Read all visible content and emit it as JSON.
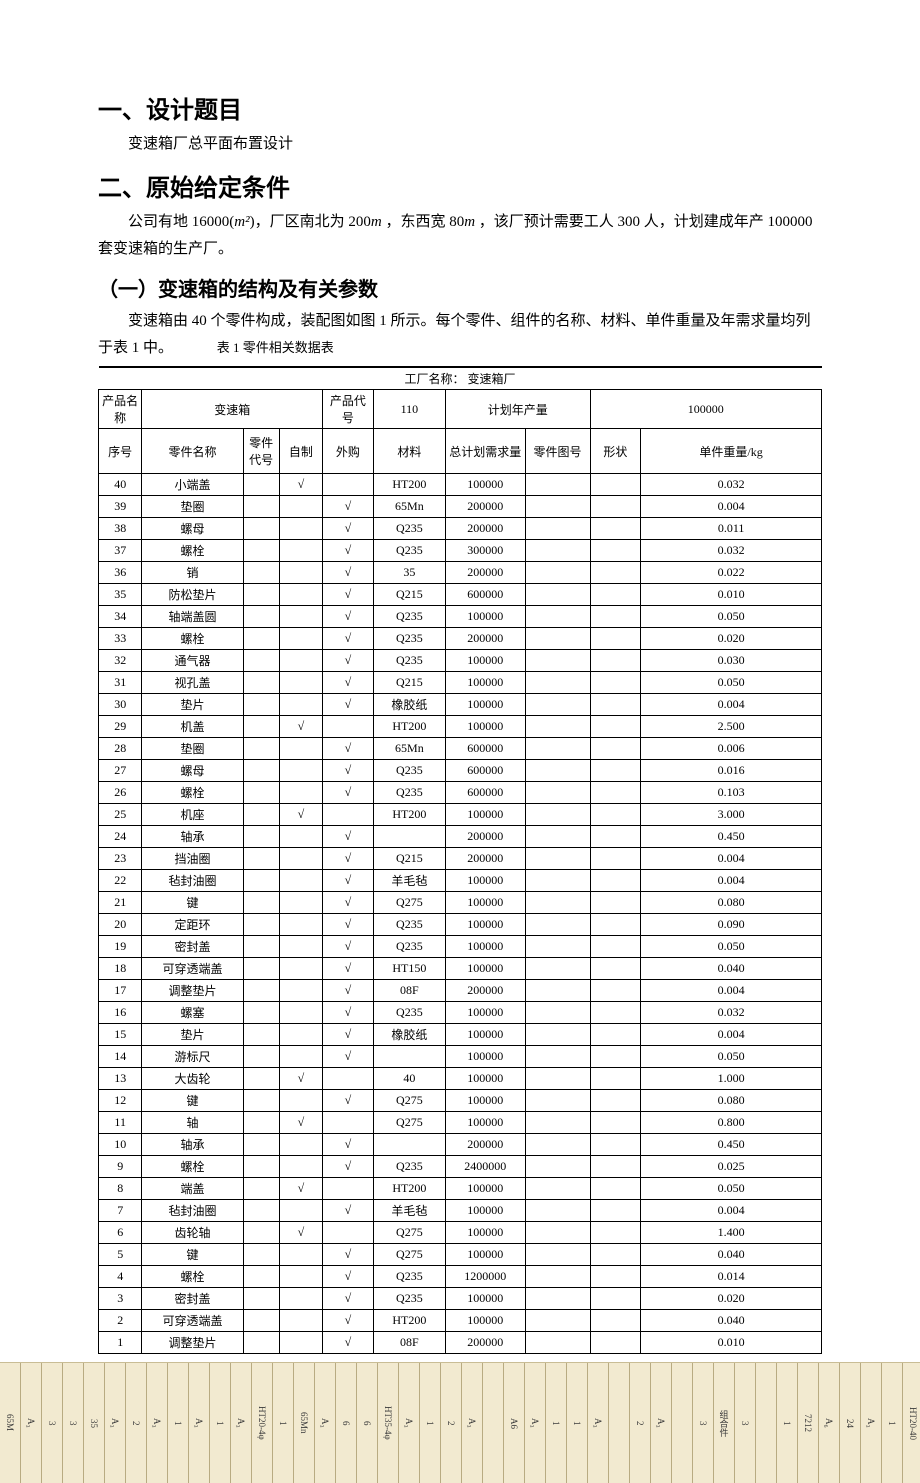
{
  "headings": {
    "h1": "一、设计题目",
    "h1_sub": "变速箱厂总平面布置设计",
    "h2": "二、原始给定条件",
    "h2_para_a": "公司有地 16000(",
    "h2_para_unit": "m²",
    "h2_para_b": ")，厂区南北为 200",
    "h2_para_m1": "m",
    "h2_para_c": " ，东西宽 80",
    "h2_para_m2": "m",
    "h2_para_d": " ，该厂预计需要工人 300 人，计划建成年产 100000 套变速箱的生产厂。",
    "h3": "（一）变速箱的结构及有关参数",
    "h3_para": "变速箱由 40 个零件构成，装配图如图 1 所示。每个零件、组件的名称、材料、单件重量及年需求量均列于表 1 中。",
    "caption": "表 1 零件相关数据表"
  },
  "table": {
    "factory_label": "工厂名称：",
    "factory_name": "变速箱厂",
    "product_row": {
      "product_name_label": "产品名称",
      "product_name": "变速箱",
      "product_code_label": "产品代号",
      "product_code": "110",
      "plan_output_label": "计划年产量",
      "plan_output": "100000"
    },
    "columns": [
      "序号",
      "零件名称",
      "零件代号",
      "自制",
      "外购",
      "材料",
      "总计划需求量",
      "零件图号",
      "形状",
      "单件重量/kg"
    ],
    "rows": [
      {
        "no": "40",
        "name": "小端盖",
        "code": "",
        "make": "√",
        "buy": "",
        "mat": "HT200",
        "demand": "100000",
        "draw": "",
        "shape": "",
        "wt": "0.032"
      },
      {
        "no": "39",
        "name": "垫圈",
        "code": "",
        "make": "",
        "buy": "√",
        "mat": "65Mn",
        "demand": "200000",
        "draw": "",
        "shape": "",
        "wt": "0.004"
      },
      {
        "no": "38",
        "name": "螺母",
        "code": "",
        "make": "",
        "buy": "√",
        "mat": "Q235",
        "demand": "200000",
        "draw": "",
        "shape": "",
        "wt": "0.011"
      },
      {
        "no": "37",
        "name": "螺栓",
        "code": "",
        "make": "",
        "buy": "√",
        "mat": "Q235",
        "demand": "300000",
        "draw": "",
        "shape": "",
        "wt": "0.032"
      },
      {
        "no": "36",
        "name": "销",
        "code": "",
        "make": "",
        "buy": "√",
        "mat": "35",
        "demand": "200000",
        "draw": "",
        "shape": "",
        "wt": "0.022"
      },
      {
        "no": "35",
        "name": "防松垫片",
        "code": "",
        "make": "",
        "buy": "√",
        "mat": "Q215",
        "demand": "600000",
        "draw": "",
        "shape": "",
        "wt": "0.010"
      },
      {
        "no": "34",
        "name": "轴端盖圆",
        "code": "",
        "make": "",
        "buy": "√",
        "mat": "Q235",
        "demand": "100000",
        "draw": "",
        "shape": "",
        "wt": "0.050"
      },
      {
        "no": "33",
        "name": "螺栓",
        "code": "",
        "make": "",
        "buy": "√",
        "mat": "Q235",
        "demand": "200000",
        "draw": "",
        "shape": "",
        "wt": "0.020"
      },
      {
        "no": "32",
        "name": "通气器",
        "code": "",
        "make": "",
        "buy": "√",
        "mat": "Q235",
        "demand": "100000",
        "draw": "",
        "shape": "",
        "wt": "0.030"
      },
      {
        "no": "31",
        "name": "视孔盖",
        "code": "",
        "make": "",
        "buy": "√",
        "mat": "Q215",
        "demand": "100000",
        "draw": "",
        "shape": "",
        "wt": "0.050"
      },
      {
        "no": "30",
        "name": "垫片",
        "code": "",
        "make": "",
        "buy": "√",
        "mat": "橡胶纸",
        "demand": "100000",
        "draw": "",
        "shape": "",
        "wt": "0.004"
      },
      {
        "no": "29",
        "name": "机盖",
        "code": "",
        "make": "√",
        "buy": "",
        "mat": "HT200",
        "demand": "100000",
        "draw": "",
        "shape": "",
        "wt": "2.500"
      },
      {
        "no": "28",
        "name": "垫圈",
        "code": "",
        "make": "",
        "buy": "√",
        "mat": "65Mn",
        "demand": "600000",
        "draw": "",
        "shape": "",
        "wt": "0.006"
      },
      {
        "no": "27",
        "name": "螺母",
        "code": "",
        "make": "",
        "buy": "√",
        "mat": "Q235",
        "demand": "600000",
        "draw": "",
        "shape": "",
        "wt": "0.016"
      },
      {
        "no": "26",
        "name": "螺栓",
        "code": "",
        "make": "",
        "buy": "√",
        "mat": "Q235",
        "demand": "600000",
        "draw": "",
        "shape": "",
        "wt": "0.103"
      },
      {
        "no": "25",
        "name": "机座",
        "code": "",
        "make": "√",
        "buy": "",
        "mat": "HT200",
        "demand": "100000",
        "draw": "",
        "shape": "",
        "wt": "3.000"
      },
      {
        "no": "24",
        "name": "轴承",
        "code": "",
        "make": "",
        "buy": "√",
        "mat": "",
        "demand": "200000",
        "draw": "",
        "shape": "",
        "wt": "0.450"
      },
      {
        "no": "23",
        "name": "挡油圈",
        "code": "",
        "make": "",
        "buy": "√",
        "mat": "Q215",
        "demand": "200000",
        "draw": "",
        "shape": "",
        "wt": "0.004"
      },
      {
        "no": "22",
        "name": "毡封油圈",
        "code": "",
        "make": "",
        "buy": "√",
        "mat": "羊毛毡",
        "demand": "100000",
        "draw": "",
        "shape": "",
        "wt": "0.004"
      },
      {
        "no": "21",
        "name": "键",
        "code": "",
        "make": "",
        "buy": "√",
        "mat": "Q275",
        "demand": "100000",
        "draw": "",
        "shape": "",
        "wt": "0.080"
      },
      {
        "no": "20",
        "name": "定距环",
        "code": "",
        "make": "",
        "buy": "√",
        "mat": "Q235",
        "demand": "100000",
        "draw": "",
        "shape": "",
        "wt": "0.090"
      },
      {
        "no": "19",
        "name": "密封盖",
        "code": "",
        "make": "",
        "buy": "√",
        "mat": "Q235",
        "demand": "100000",
        "draw": "",
        "shape": "",
        "wt": "0.050"
      },
      {
        "no": "18",
        "name": "可穿透端盖",
        "code": "",
        "make": "",
        "buy": "√",
        "mat": "HT150",
        "demand": "100000",
        "draw": "",
        "shape": "",
        "wt": "0.040"
      },
      {
        "no": "17",
        "name": "调整垫片",
        "code": "",
        "make": "",
        "buy": "√",
        "mat": "08F",
        "demand": "200000",
        "draw": "",
        "shape": "",
        "wt": "0.004"
      },
      {
        "no": "16",
        "name": "螺塞",
        "code": "",
        "make": "",
        "buy": "√",
        "mat": "Q235",
        "demand": "100000",
        "draw": "",
        "shape": "",
        "wt": "0.032"
      },
      {
        "no": "15",
        "name": "垫片",
        "code": "",
        "make": "",
        "buy": "√",
        "mat": "橡胶纸",
        "demand": "100000",
        "draw": "",
        "shape": "",
        "wt": "0.004"
      },
      {
        "no": "14",
        "name": "游标尺",
        "code": "",
        "make": "",
        "buy": "√",
        "mat": "",
        "demand": "100000",
        "draw": "",
        "shape": "",
        "wt": "0.050"
      },
      {
        "no": "13",
        "name": "大齿轮",
        "code": "",
        "make": "√",
        "buy": "",
        "mat": "40",
        "demand": "100000",
        "draw": "",
        "shape": "",
        "wt": "1.000"
      },
      {
        "no": "12",
        "name": "键",
        "code": "",
        "make": "",
        "buy": "√",
        "mat": "Q275",
        "demand": "100000",
        "draw": "",
        "shape": "",
        "wt": "0.080"
      },
      {
        "no": "11",
        "name": "轴",
        "code": "",
        "make": "√",
        "buy": "",
        "mat": "Q275",
        "demand": "100000",
        "draw": "",
        "shape": "",
        "wt": "0.800"
      },
      {
        "no": "10",
        "name": "轴承",
        "code": "",
        "make": "",
        "buy": "√",
        "mat": "",
        "demand": "200000",
        "draw": "",
        "shape": "",
        "wt": "0.450"
      },
      {
        "no": "9",
        "name": "螺栓",
        "code": "",
        "make": "",
        "buy": "√",
        "mat": "Q235",
        "demand": "2400000",
        "draw": "",
        "shape": "",
        "wt": "0.025"
      },
      {
        "no": "8",
        "name": "端盖",
        "code": "",
        "make": "√",
        "buy": "",
        "mat": "HT200",
        "demand": "100000",
        "draw": "",
        "shape": "",
        "wt": "0.050"
      },
      {
        "no": "7",
        "name": "毡封油圈",
        "code": "",
        "make": "",
        "buy": "√",
        "mat": "羊毛毡",
        "demand": "100000",
        "draw": "",
        "shape": "",
        "wt": "0.004"
      },
      {
        "no": "6",
        "name": "齿轮轴",
        "code": "",
        "make": "√",
        "buy": "",
        "mat": "Q275",
        "demand": "100000",
        "draw": "",
        "shape": "",
        "wt": "1.400"
      },
      {
        "no": "5",
        "name": "键",
        "code": "",
        "make": "",
        "buy": "√",
        "mat": "Q275",
        "demand": "100000",
        "draw": "",
        "shape": "",
        "wt": "0.040"
      },
      {
        "no": "4",
        "name": "螺栓",
        "code": "",
        "make": "",
        "buy": "√",
        "mat": "Q235",
        "demand": "1200000",
        "draw": "",
        "shape": "",
        "wt": "0.014"
      },
      {
        "no": "3",
        "name": "密封盖",
        "code": "",
        "make": "",
        "buy": "√",
        "mat": "Q235",
        "demand": "100000",
        "draw": "",
        "shape": "",
        "wt": "0.020"
      },
      {
        "no": "2",
        "name": "可穿透端盖",
        "code": "",
        "make": "",
        "buy": "√",
        "mat": "HT200",
        "demand": "100000",
        "draw": "",
        "shape": "",
        "wt": "0.040"
      },
      {
        "no": "1",
        "name": "调整垫片",
        "code": "",
        "make": "",
        "buy": "√",
        "mat": "08F",
        "demand": "200000",
        "draw": "",
        "shape": "",
        "wt": "0.010"
      }
    ],
    "col_widths": [
      "6%",
      "14%",
      "5%",
      "6%",
      "7%",
      "10%",
      "11%",
      "9%",
      "7%",
      "25%"
    ]
  },
  "footer": {
    "cells": [
      "65M",
      "A₃",
      "3",
      "3",
      "35",
      "A₃",
      "2",
      "A₃",
      "1",
      "A₃",
      "1",
      "A₃",
      "HT20-4φ",
      "1",
      "65Mn",
      "A₃",
      "6",
      "6",
      "HT35-4φ",
      "A₃",
      "1",
      "2",
      "A₃",
      "",
      "A6",
      "A₃",
      "1",
      "1",
      "A₃",
      "",
      "2",
      "A₃",
      "",
      "3",
      "组合件",
      "3",
      "",
      "1",
      "7212",
      "A₆",
      "24",
      "A₃",
      "1",
      "HT20-40",
      "1",
      "A₃",
      "12",
      "1",
      "A₃",
      "A₆",
      "A₃",
      "1",
      "HT2-40",
      "2",
      "时间",
      "图纸",
      "备注",
      "牛田",
      "描图",
      "比例",
      "图号",
      "3",
      "数量材料栏"
    ]
  },
  "style": {
    "text_color": "#000000",
    "bg_color": "#ffffff",
    "footer_bg": "#f2ead0",
    "footer_border": "#b8ab82",
    "table_border": "#000000",
    "h1_fontsize": 24,
    "body_fontsize": 15,
    "table_fontsize": 12
  }
}
